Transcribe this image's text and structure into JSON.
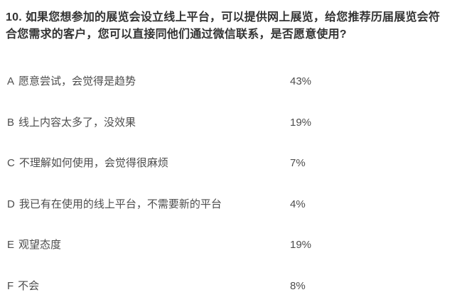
{
  "page": {
    "background": "#ffffff",
    "title_color": "#333333",
    "text_color": "#4d4d4d"
  },
  "question": {
    "number": "10.",
    "text": "如果您想参加的展览会设立线上平台，可以提供网上展览，给您推荐历届展览会符合您需求的客户，您可以直接同他们通过微信联系，是否愿意使用?"
  },
  "options": [
    {
      "letter": "A",
      "text": "愿意尝试，会觉得是趋势",
      "percent": "43%"
    },
    {
      "letter": "B",
      "text": "线上内容太多了，没效果",
      "percent": "19%"
    },
    {
      "letter": "C",
      "text": "不理解如何使用，会觉得很麻烦",
      "percent": "7%"
    },
    {
      "letter": "D",
      "text": "我已有在使用的线上平台，不需要新的平台",
      "percent": "4%"
    },
    {
      "letter": "E",
      "text": "观望态度",
      "percent": "19%"
    },
    {
      "letter": "F",
      "text": "不会",
      "percent": "8%"
    }
  ],
  "chart_data": {
    "type": "table",
    "title": "10. 如果您想参加的展览会设立线上平台，可以提供网上展览，给您推荐历届展览会符合您需求的客户，您可以直接同他们通过微信联系，是否愿意使用?",
    "categories": [
      "A 愿意尝试，会觉得是趋势",
      "B 线上内容太多了，没效果",
      "C 不理解如何使用，会觉得很麻烦",
      "D 我已有在使用的线上平台，不需要新的平台",
      "E 观望态度",
      "F 不会"
    ],
    "values": [
      43,
      19,
      7,
      4,
      19,
      8
    ],
    "unit": "%"
  }
}
